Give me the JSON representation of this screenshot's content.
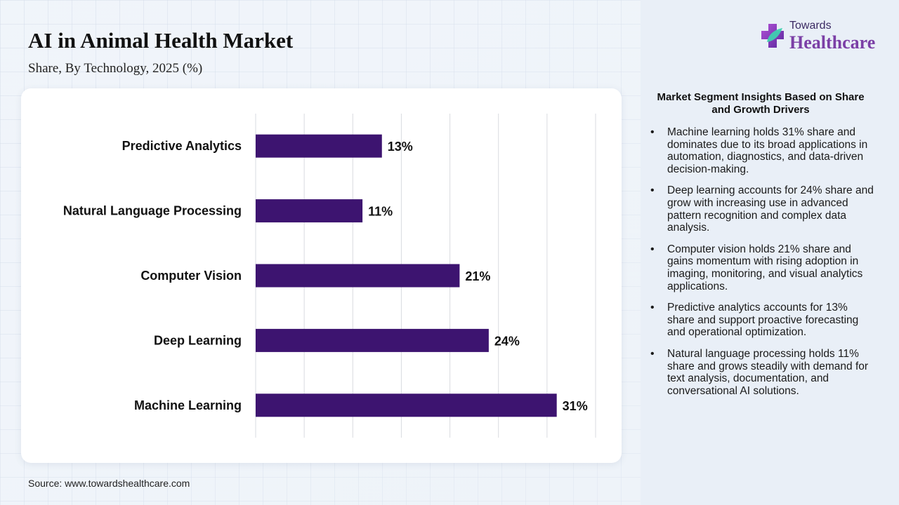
{
  "header": {
    "title": "AI in Animal Health Market",
    "subtitle": "Share, By Technology, 2025 (%)"
  },
  "logo": {
    "line1": "Towards",
    "line2": "Healthcare",
    "icon": "plus-leaf-icon"
  },
  "source": "Source: www.towardshealthcare.com",
  "colors": {
    "bar": "#3d1470",
    "brand_purple": "#7b3fa6",
    "gridline": "#d9dbe0"
  },
  "chart_data": {
    "type": "bar",
    "orientation": "horizontal",
    "categories": [
      "Predictive Analytics",
      "Natural Language Processing",
      "Computer Vision",
      "Deep Learning",
      "Machine Learning"
    ],
    "values": [
      13,
      11,
      21,
      24,
      31
    ],
    "value_labels": [
      "13%",
      "11%",
      "21%",
      "24%",
      "31%"
    ],
    "xlim": [
      0,
      35
    ],
    "grid": true,
    "title": "",
    "xlabel": "",
    "ylabel": ""
  },
  "insights": {
    "title": "Market Segment Insights Based on Share and Growth Drivers",
    "items": [
      "Machine learning holds 31% share and dominates due to its broad applications in automation, diagnostics, and data-driven decision-making.",
      "Deep learning accounts for 24% share and grow with increasing use in advanced pattern recognition and complex data analysis.",
      "Computer vision holds 21% share and gains momentum with rising adoption in imaging, monitoring, and visual analytics applications.",
      "Predictive analytics accounts for 13% share and support proactive forecasting and operational optimization.",
      "Natural language processing holds 11% share and grows steadily with demand for text analysis, documentation, and conversational AI solutions."
    ]
  }
}
